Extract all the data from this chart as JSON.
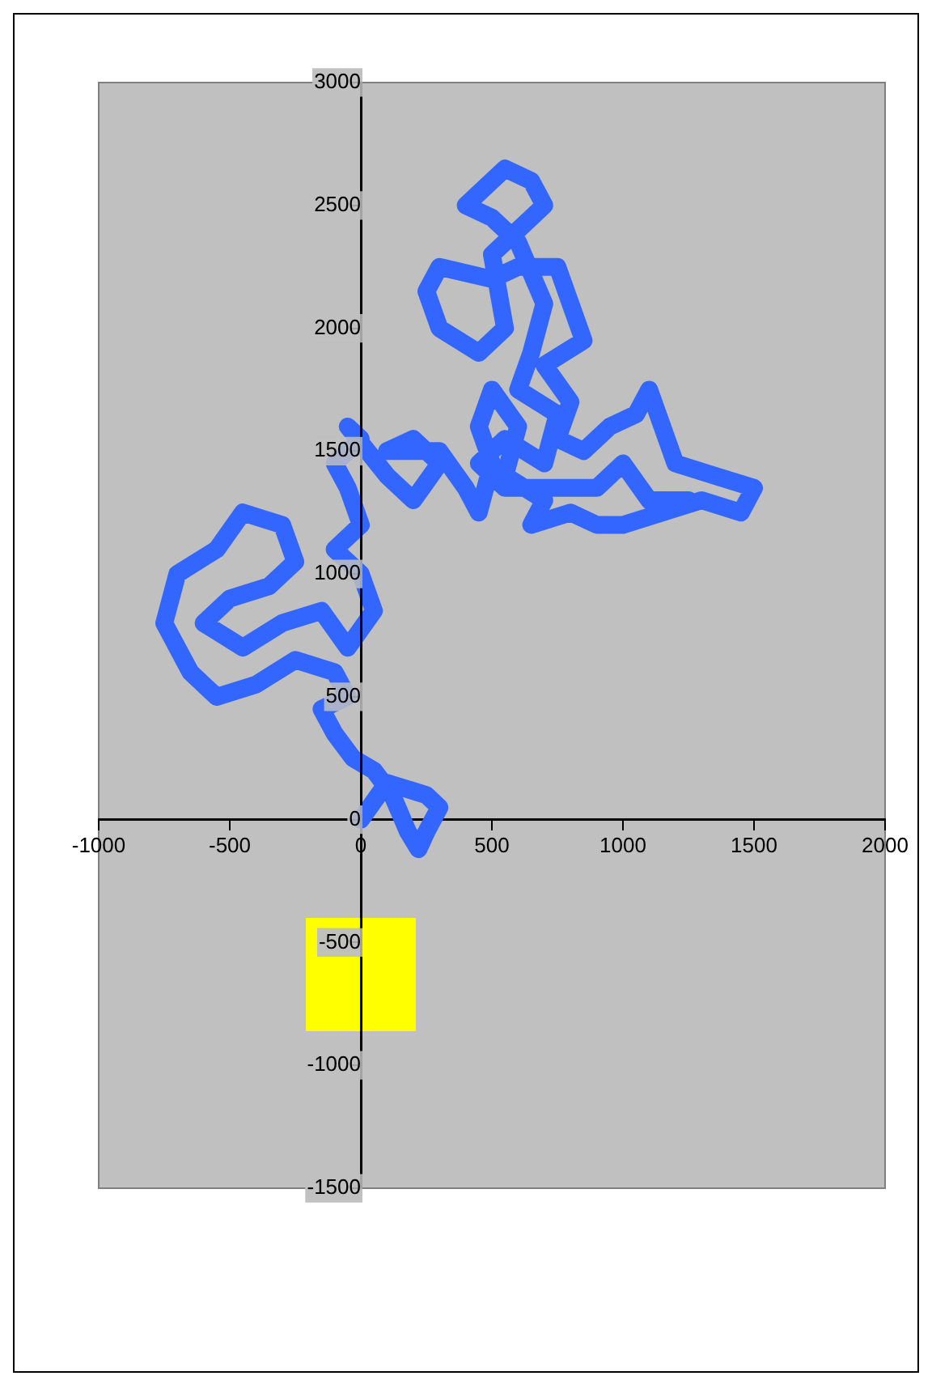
{
  "chart_data": {
    "type": "line",
    "xlim": [
      -1000,
      2000
    ],
    "xticks": [
      -1000,
      -500,
      0,
      500,
      1000,
      1500,
      2000
    ],
    "ylim": [
      -1500,
      3000
    ],
    "yticks": [
      -1500,
      -1000,
      -500,
      0,
      500,
      1000,
      1500,
      2000,
      2500,
      3000
    ],
    "grid": false,
    "legend": false,
    "marker": "none",
    "line_style": "solid",
    "series": [
      {
        "color": "#3366ff",
        "x": [
          0,
          100,
          250,
          300,
          250,
          220,
          180,
          120,
          50,
          -30,
          -100,
          -150,
          -50,
          -100,
          -250,
          -400,
          -550,
          -650,
          -750,
          -700,
          -550,
          -450,
          -300,
          -250,
          -350,
          -500,
          -600,
          -450,
          -300,
          -150,
          -50,
          50,
          0,
          -100,
          0,
          -50,
          -100,
          0,
          -50,
          100,
          200,
          300,
          200,
          100,
          300,
          400,
          450,
          500,
          450,
          500,
          600,
          550,
          700,
          650,
          800,
          900,
          1000,
          1150,
          1300,
          1450,
          1500,
          1350,
          1200,
          1150,
          1100,
          1050,
          950,
          850,
          750,
          800,
          700,
          850,
          800,
          750,
          600,
          500,
          300,
          250,
          300,
          450,
          550,
          500,
          600,
          700,
          650,
          550,
          450,
          400,
          500,
          600,
          700,
          650,
          600,
          750,
          700,
          550,
          450,
          550,
          700,
          900,
          1000,
          1100,
          1250
        ],
        "values": [
          0,
          150,
          100,
          50,
          -50,
          -120,
          -50,
          100,
          200,
          250,
          350,
          450,
          500,
          600,
          650,
          550,
          500,
          600,
          800,
          1000,
          1100,
          1250,
          1200,
          1050,
          950,
          900,
          800,
          700,
          800,
          850,
          700,
          850,
          1000,
          1100,
          1200,
          1350,
          1450,
          1550,
          1600,
          1400,
          1300,
          1450,
          1550,
          1500,
          1500,
          1350,
          1250,
          1450,
          1600,
          1750,
          1600,
          1400,
          1300,
          1200,
          1250,
          1200,
          1200,
          1250,
          1300,
          1250,
          1350,
          1400,
          1450,
          1600,
          1750,
          1650,
          1600,
          1500,
          1550,
          1700,
          1850,
          1950,
          2100,
          2250,
          2250,
          2200,
          2250,
          2150,
          2000,
          1900,
          2000,
          2300,
          2400,
          2500,
          2600,
          2650,
          2550,
          2500,
          2450,
          2350,
          2100,
          1900,
          1750,
          1650,
          1450,
          1550,
          1450,
          1350,
          1350,
          1350,
          1450,
          1300,
          1300
        ]
      }
    ]
  }
}
